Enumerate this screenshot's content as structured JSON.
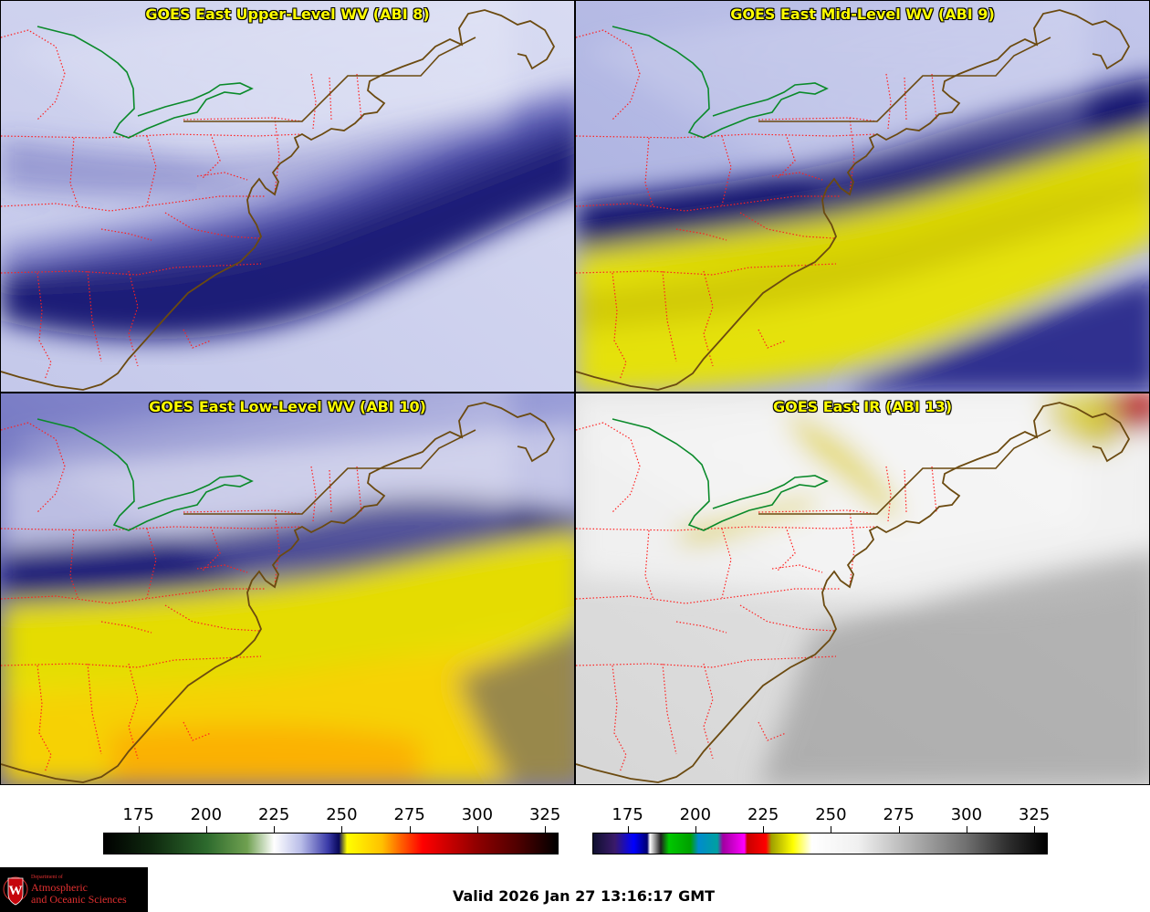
{
  "panels": [
    {
      "title": "GOES East Upper-Level WV (ABI 8)",
      "palette": "wv-upper"
    },
    {
      "title": "GOES East Mid-Level WV (ABI 9)",
      "palette": "wv-mid"
    },
    {
      "title": "GOES East Low-Level WV (ABI 10)",
      "palette": "wv-low"
    },
    {
      "title": "GOES East IR (ABI 13)",
      "palette": "ir"
    }
  ],
  "colorbars": {
    "wv": {
      "ticks": [
        "175",
        "200",
        "225",
        "250",
        "275",
        "300",
        "325"
      ],
      "range": [
        162,
        330
      ],
      "stops": [
        [
          162,
          "#000000"
        ],
        [
          180,
          "#0f2a0f"
        ],
        [
          200,
          "#2d6a2d"
        ],
        [
          215,
          "#6fa050"
        ],
        [
          225,
          "#ffffff"
        ],
        [
          235,
          "#b8bce8"
        ],
        [
          245,
          "#3a3aa8"
        ],
        [
          249,
          "#08085a"
        ],
        [
          252,
          "#ffff00"
        ],
        [
          265,
          "#ffc000"
        ],
        [
          272,
          "#ff6000"
        ],
        [
          280,
          "#ff0000"
        ],
        [
          300,
          "#900000"
        ],
        [
          315,
          "#500000"
        ],
        [
          330,
          "#000000"
        ]
      ]
    },
    "ir": {
      "ticks": [
        "175",
        "200",
        "225",
        "250",
        "275",
        "300",
        "325"
      ],
      "range": [
        162,
        330
      ],
      "stops": [
        [
          162,
          "#101030"
        ],
        [
          170,
          "#3a1a6a"
        ],
        [
          177,
          "#0000ff"
        ],
        [
          182,
          "#000070"
        ],
        [
          183,
          "#ffffff"
        ],
        [
          187,
          "#202020"
        ],
        [
          190,
          "#00c800"
        ],
        [
          198,
          "#00a000"
        ],
        [
          201,
          "#008ccc"
        ],
        [
          208,
          "#00a0a0"
        ],
        [
          210,
          "#a000a0"
        ],
        [
          218,
          "#ff00ff"
        ],
        [
          219,
          "#c80000"
        ],
        [
          226,
          "#ff0000"
        ],
        [
          228,
          "#a0a000"
        ],
        [
          236,
          "#ffff00"
        ],
        [
          243,
          "#ffffff"
        ],
        [
          260,
          "#f0f0f0"
        ],
        [
          280,
          "#b0b0b0"
        ],
        [
          300,
          "#707070"
        ],
        [
          315,
          "#303030"
        ],
        [
          330,
          "#000000"
        ]
      ]
    }
  },
  "footer": {
    "valid_time": "Valid 2026 Jan 27 13:16:17 GMT",
    "logo_department": "Department of",
    "logo_line1": "Atmospheric",
    "logo_line2": "and Oceanic Sciences",
    "logo_letter": "W"
  }
}
